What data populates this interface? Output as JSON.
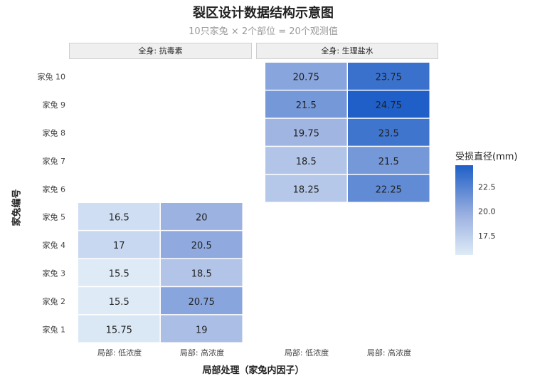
{
  "chart_data": {
    "type": "heatmap",
    "title": "裂区设计数据结构示意图",
    "subtitle": "10只家兔 × 2个部位 = 20个观测值",
    "xlabel": "局部处理（家兔内因子）",
    "ylabel": "家兔编号",
    "legend_title": "受损直径(mm)",
    "legend_ticks": [
      "22.5",
      "20.0",
      "17.5"
    ],
    "legend_tick_values": [
      22.5,
      20.0,
      17.5
    ],
    "color_range": [
      15.5,
      24.75
    ],
    "colors": {
      "low": "#deebf7",
      "mid": "#9ab0e0",
      "high": "#1f5fc7"
    },
    "y_categories": [
      "家兔 1",
      "家兔 2",
      "家兔 3",
      "家兔 4",
      "家兔 5",
      "家兔 6",
      "家兔 7",
      "家兔 8",
      "家兔 9",
      "家兔 10"
    ],
    "x_categories": [
      "局部: 低浓度",
      "局部: 高浓度"
    ],
    "panels": [
      {
        "facet": "全身: 抗毒素",
        "rows": [
          {
            "rabbit": "家兔 5",
            "values": [
              16.5,
              20
            ]
          },
          {
            "rabbit": "家兔 4",
            "values": [
              17,
              20.5
            ]
          },
          {
            "rabbit": "家兔 3",
            "values": [
              15.5,
              18.5
            ]
          },
          {
            "rabbit": "家兔 2",
            "values": [
              15.5,
              20.75
            ]
          },
          {
            "rabbit": "家兔 1",
            "values": [
              15.75,
              19
            ]
          }
        ]
      },
      {
        "facet": "全身: 生理盐水",
        "rows": [
          {
            "rabbit": "家兔 10",
            "values": [
              20.75,
              23.75
            ]
          },
          {
            "rabbit": "家兔 9",
            "values": [
              21.5,
              24.75
            ]
          },
          {
            "rabbit": "家兔 8",
            "values": [
              19.75,
              23.5
            ]
          },
          {
            "rabbit": "家兔 7",
            "values": [
              18.5,
              21.5
            ]
          },
          {
            "rabbit": "家兔 6",
            "values": [
              18.25,
              22.25
            ]
          }
        ]
      }
    ]
  }
}
